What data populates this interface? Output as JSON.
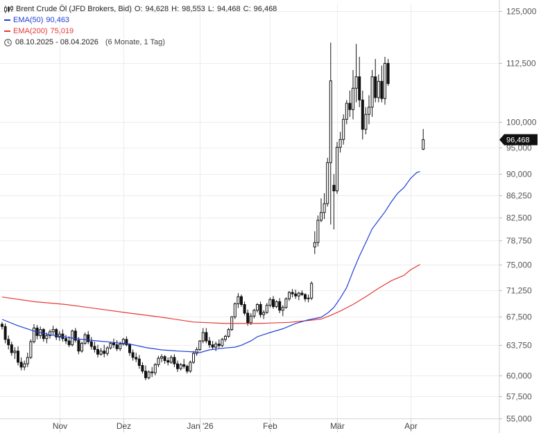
{
  "legend": {
    "title": "Brent Crude Öl (JFD Brokers, Bid)",
    "ohlc": {
      "o_label": "O:",
      "o": "94,628",
      "h_label": "H:",
      "h": "98,553",
      "l_label": "L:",
      "l": "94,468",
      "c_label": "C:",
      "c": "96,468"
    },
    "ema50": {
      "label": "EMA(50)",
      "value": "90,463",
      "color": "#1f3fd6"
    },
    "ema200": {
      "label": "EMA(200)",
      "value": "75,019",
      "color": "#e53935"
    },
    "range": {
      "dates": "08.10.2025 - 08.04.2026",
      "extra": "(6 Monate, 1 Tag)"
    },
    "ohlc_icon": "candlestick-icon",
    "range_icon": "clock-icon"
  },
  "last_price_label": "96,468",
  "chart_data": {
    "type": "candlestick",
    "y_scale": "log",
    "ylim": [
      55000,
      125000
    ],
    "grid": true,
    "y_ticks": [
      {
        "value": 125000,
        "label": "125,000"
      },
      {
        "value": 112500,
        "label": "112,500"
      },
      {
        "value": 100000,
        "label": "100,000"
      },
      {
        "value": 95000,
        "label": "95,000"
      },
      {
        "value": 90000,
        "label": "90,000"
      },
      {
        "value": 86250,
        "label": "86,250"
      },
      {
        "value": 82500,
        "label": "82,500"
      },
      {
        "value": 78750,
        "label": "78,750"
      },
      {
        "value": 75000,
        "label": "75,000"
      },
      {
        "value": 71250,
        "label": "71,250"
      },
      {
        "value": 67500,
        "label": "67,500"
      },
      {
        "value": 63750,
        "label": "63,750"
      },
      {
        "value": 60000,
        "label": "60,000"
      },
      {
        "value": 57500,
        "label": "57,500"
      },
      {
        "value": 55000,
        "label": "55,000"
      }
    ],
    "x_ticks": [
      {
        "index": 18,
        "label": "Nov"
      },
      {
        "index": 38,
        "label": "Dez"
      },
      {
        "index": 62,
        "label": "Jan '26"
      },
      {
        "index": 84,
        "label": "Feb"
      },
      {
        "index": 105,
        "label": "Mär"
      },
      {
        "index": 128,
        "label": "Apr"
      }
    ],
    "ohlc": [
      [
        66500,
        66800,
        65800,
        66200
      ],
      [
        66200,
        66600,
        64000,
        64500
      ],
      [
        64500,
        65000,
        63200,
        63800
      ],
      [
        63800,
        64200,
        62400,
        62800
      ],
      [
        62800,
        63500,
        62000,
        63000
      ],
      [
        63000,
        63600,
        61200,
        61600
      ],
      [
        61600,
        62200,
        60600,
        61000
      ],
      [
        61000,
        61800,
        60600,
        61400
      ],
      [
        61400,
        62800,
        61000,
        62200
      ],
      [
        62200,
        64500,
        62000,
        64200
      ],
      [
        64200,
        66500,
        64000,
        66000
      ],
      [
        66000,
        66400,
        64500,
        65000
      ],
      [
        65000,
        66200,
        64600,
        65800
      ],
      [
        65800,
        66000,
        64200,
        64600
      ],
      [
        64600,
        65400,
        64000,
        65000
      ],
      [
        65000,
        65800,
        64600,
        65500
      ],
      [
        65500,
        66300,
        65000,
        65800
      ],
      [
        65800,
        66000,
        64400,
        64800
      ],
      [
        64800,
        65600,
        64300,
        65200
      ],
      [
        65200,
        65800,
        64200,
        64600
      ],
      [
        64600,
        65100,
        63900,
        64300
      ],
      [
        64300,
        64900,
        63500,
        63800
      ],
      [
        63800,
        65800,
        63600,
        65600
      ],
      [
        65600,
        66000,
        64100,
        64400
      ],
      [
        64400,
        64800,
        62600,
        63000
      ],
      [
        63000,
        64200,
        62800,
        64000
      ],
      [
        64000,
        65400,
        63800,
        65100
      ],
      [
        65100,
        65600,
        63900,
        64200
      ],
      [
        64200,
        64800,
        63200,
        63600
      ],
      [
        63600,
        64200,
        62800,
        63200
      ],
      [
        63200,
        63800,
        62200,
        62600
      ],
      [
        62600,
        63400,
        62400,
        63000
      ],
      [
        63000,
        63800,
        62200,
        62700
      ],
      [
        62700,
        63600,
        62400,
        63400
      ],
      [
        63400,
        64200,
        63200,
        64000
      ],
      [
        64000,
        64600,
        63400,
        63800
      ],
      [
        63800,
        64400,
        63000,
        63300
      ],
      [
        63300,
        64200,
        63000,
        63900
      ],
      [
        63900,
        64700,
        63700,
        64500
      ],
      [
        64500,
        64900,
        63600,
        63800
      ],
      [
        63800,
        64000,
        62400,
        62800
      ],
      [
        62800,
        63200,
        61800,
        62200
      ],
      [
        62200,
        62800,
        61600,
        62000
      ],
      [
        62000,
        62500,
        60800,
        61200
      ],
      [
        61200,
        61600,
        60200,
        60500
      ],
      [
        60500,
        61200,
        59400,
        59700
      ],
      [
        59700,
        60600,
        59500,
        60400
      ],
      [
        60400,
        61000,
        59800,
        60300
      ],
      [
        60300,
        61500,
        60000,
        61300
      ],
      [
        61300,
        62400,
        61000,
        62100
      ],
      [
        62100,
        62600,
        61600,
        62300
      ],
      [
        62300,
        62500,
        61400,
        61800
      ],
      [
        61800,
        62200,
        61200,
        61600
      ],
      [
        61600,
        62500,
        61400,
        62200
      ],
      [
        62200,
        62600,
        61000,
        61400
      ],
      [
        61400,
        61800,
        60400,
        60800
      ],
      [
        60800,
        61500,
        60600,
        61300
      ],
      [
        61300,
        62000,
        60800,
        61100
      ],
      [
        61100,
        61300,
        60200,
        60500
      ],
      [
        60500,
        61800,
        60300,
        61600
      ],
      [
        61600,
        63000,
        61400,
        62700
      ],
      [
        62700,
        63500,
        62400,
        63200
      ],
      [
        63200,
        64400,
        63000,
        64300
      ],
      [
        64300,
        66000,
        64000,
        65400
      ],
      [
        65400,
        66000,
        64000,
        64300
      ],
      [
        64300,
        64800,
        63400,
        63800
      ],
      [
        63800,
        64300,
        63200,
        63500
      ],
      [
        63500,
        64200,
        63000,
        63900
      ],
      [
        63900,
        64500,
        63400,
        63700
      ],
      [
        63700,
        64700,
        63500,
        64500
      ],
      [
        64500,
        65100,
        64200,
        64900
      ],
      [
        64900,
        66000,
        64700,
        65800
      ],
      [
        65800,
        67600,
        65600,
        67500
      ],
      [
        67500,
        69500,
        67200,
        69300
      ],
      [
        69300,
        70800,
        68700,
        70300
      ],
      [
        70300,
        70600,
        68900,
        69200
      ],
      [
        69200,
        69600,
        67700,
        68000
      ],
      [
        68000,
        68500,
        66300,
        66700
      ],
      [
        66700,
        68000,
        66400,
        67600
      ],
      [
        67600,
        68600,
        67300,
        68400
      ],
      [
        68400,
        69400,
        68100,
        69200
      ],
      [
        69200,
        69600,
        67400,
        67800
      ],
      [
        67800,
        68400,
        67200,
        68100
      ],
      [
        68100,
        69400,
        67900,
        69100
      ],
      [
        69100,
        70200,
        68800,
        69900
      ],
      [
        69900,
        70400,
        68600,
        68900
      ],
      [
        68900,
        69800,
        68700,
        69600
      ],
      [
        69600,
        70100,
        68000,
        68400
      ],
      [
        68400,
        69100,
        67600,
        68800
      ],
      [
        68800,
        70200,
        68600,
        70000
      ],
      [
        70000,
        71100,
        69700,
        70900
      ],
      [
        70900,
        71400,
        70200,
        70700
      ],
      [
        70700,
        71300,
        70000,
        70400
      ],
      [
        70400,
        71000,
        69800,
        70800
      ],
      [
        70800,
        71200,
        70400,
        70600
      ],
      [
        70600,
        70800,
        69600,
        70000
      ],
      [
        70000,
        70600,
        69500,
        70100
      ],
      [
        70100,
        72500,
        69800,
        72200
      ],
      [
        77700,
        80200,
        76600,
        78400
      ],
      [
        78400,
        82800,
        77800,
        82000
      ],
      [
        82000,
        85700,
        81700,
        83300
      ],
      [
        83300,
        86600,
        82200,
        84800
      ],
      [
        84800,
        93000,
        84300,
        92100
      ],
      [
        92100,
        117300,
        81300,
        108600
      ],
      [
        88000,
        90000,
        80500,
        87000
      ],
      [
        87000,
        96000,
        86500,
        95000
      ],
      [
        95000,
        98000,
        94000,
        96500
      ],
      [
        96500,
        101500,
        95500,
        100500
      ],
      [
        100500,
        104500,
        99500,
        103800
      ],
      [
        103800,
        106500,
        101000,
        102500
      ],
      [
        102500,
        111000,
        100500,
        107000
      ],
      [
        107000,
        117000,
        104000,
        109500
      ],
      [
        109500,
        114000,
        103000,
        104500
      ],
      [
        104500,
        106500,
        96500,
        98500
      ],
      [
        98500,
        103000,
        97500,
        101500
      ],
      [
        101500,
        105500,
        99500,
        103000
      ],
      [
        103000,
        111000,
        101000,
        109500
      ],
      [
        109500,
        113500,
        104000,
        105000
      ],
      [
        105000,
        110000,
        104000,
        108500
      ],
      [
        108500,
        112000,
        104000,
        104800
      ],
      [
        104800,
        114000,
        103500,
        112500
      ],
      [
        112500,
        113500,
        107500,
        108000
      ]
    ],
    "last_candle": {
      "index": 132,
      "o": 94628,
      "h": 98553,
      "l": 94468,
      "c": 96468
    },
    "ema50": [
      [
        0,
        67150
      ],
      [
        5,
        66300
      ],
      [
        10,
        65600
      ],
      [
        15,
        65100
      ],
      [
        20,
        64800
      ],
      [
        25,
        64500
      ],
      [
        30,
        64300
      ],
      [
        35,
        64100
      ],
      [
        40,
        63900
      ],
      [
        45,
        63450
      ],
      [
        50,
        63150
      ],
      [
        55,
        63000
      ],
      [
        60,
        62900
      ],
      [
        62,
        62800
      ],
      [
        65,
        63150
      ],
      [
        70,
        63400
      ],
      [
        73,
        63500
      ],
      [
        75,
        63750
      ],
      [
        78,
        64300
      ],
      [
        80,
        64850
      ],
      [
        84,
        65400
      ],
      [
        88,
        65900
      ],
      [
        92,
        66600
      ],
      [
        96,
        67100
      ],
      [
        100,
        67450
      ],
      [
        102,
        68000
      ],
      [
        104,
        68800
      ],
      [
        106,
        70100
      ],
      [
        108,
        71600
      ],
      [
        110,
        74000
      ],
      [
        112,
        76300
      ],
      [
        114,
        78400
      ],
      [
        116,
        80600
      ],
      [
        118,
        82000
      ],
      [
        120,
        83400
      ],
      [
        122,
        85100
      ],
      [
        124,
        86600
      ],
      [
        126,
        87600
      ],
      [
        128,
        89200
      ],
      [
        130,
        90300
      ],
      [
        131,
        90463
      ]
    ],
    "ema200": [
      [
        0,
        70250
      ],
      [
        10,
        69600
      ],
      [
        20,
        69200
      ],
      [
        30,
        68600
      ],
      [
        40,
        68000
      ],
      [
        50,
        67450
      ],
      [
        60,
        66800
      ],
      [
        70,
        66600
      ],
      [
        80,
        66600
      ],
      [
        90,
        66750
      ],
      [
        96,
        67000
      ],
      [
        100,
        67200
      ],
      [
        103,
        67700
      ],
      [
        106,
        68300
      ],
      [
        110,
        69200
      ],
      [
        114,
        70300
      ],
      [
        118,
        71500
      ],
      [
        122,
        72600
      ],
      [
        126,
        73400
      ],
      [
        128,
        74200
      ],
      [
        131,
        75019
      ]
    ]
  }
}
